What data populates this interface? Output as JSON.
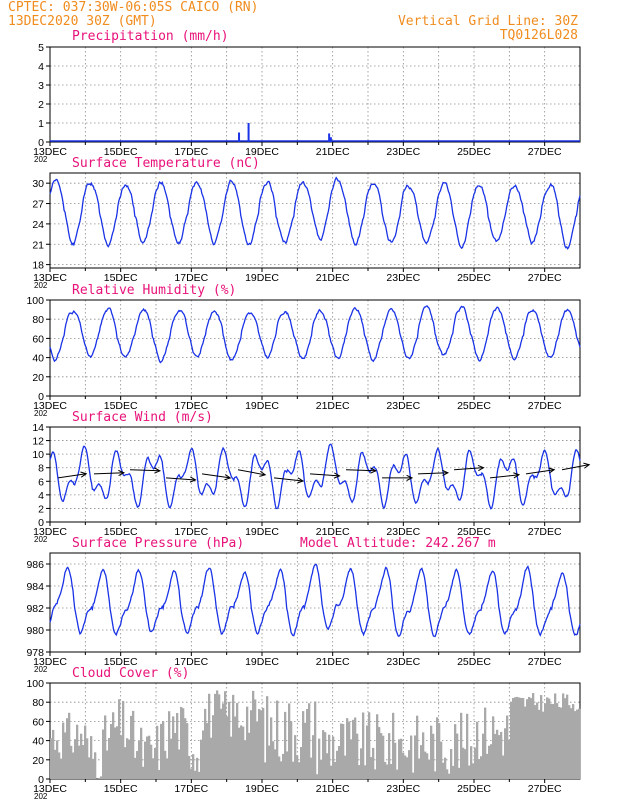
{
  "header": {
    "line1": "CPTEC:   037:30W-06:05S   CAICO (RN)",
    "line2": "13DEC2020 30Z (GMT)",
    "right1": "Vertical Grid Line: 30Z",
    "right2": "TQ0126L028"
  },
  "colors": {
    "header": "#f08c1e",
    "title": "#e8127a",
    "series": "#1a33e6",
    "cloud": "#a9a9a9",
    "grid": "#8c8c8c"
  },
  "x_axis": {
    "labels": [
      "13DEC",
      "15DEC",
      "17DEC",
      "19DEC",
      "21DEC",
      "23DEC",
      "25DEC",
      "27DEC"
    ],
    "year_fragment": "202"
  },
  "chart_data": [
    {
      "type": "bar",
      "id": "precip",
      "title": "Precipitation (mm/h)",
      "ylim": [
        0,
        5
      ],
      "yticks": [
        "0",
        "1",
        "2",
        "3",
        "4",
        "5"
      ],
      "x_day_range": [
        0,
        15
      ],
      "points": [
        {
          "day": 5.35,
          "value": 0.5
        },
        {
          "day": 5.62,
          "value": 1.0
        },
        {
          "day": 7.9,
          "value": 0.45
        },
        {
          "day": 7.95,
          "value": 0.25
        }
      ]
    },
    {
      "type": "line",
      "id": "temp",
      "title": "Surface Temperature (nC)",
      "ylim": [
        17.5,
        31.5
      ],
      "yticks": [
        "18",
        "21",
        "24",
        "27",
        "30"
      ],
      "x_day_range": [
        0,
        15
      ],
      "mean": 25.5,
      "amplitude": 4.4,
      "phase": 0.9
    },
    {
      "type": "line",
      "id": "rh",
      "title": "Relative Humidity (%)",
      "ylim": [
        0,
        100
      ],
      "yticks": [
        "0",
        "20",
        "40",
        "60",
        "80",
        "100"
      ],
      "x_day_range": [
        0,
        15
      ],
      "mean": 64,
      "amplitude": 25,
      "phase": 0.4
    },
    {
      "type": "line",
      "id": "wind",
      "title": "Surface Wind (m/s)",
      "ylim": [
        0,
        14
      ],
      "yticks": [
        "0",
        "2",
        "4",
        "6",
        "8",
        "10",
        "12",
        "14"
      ],
      "x_day_range": [
        0,
        15
      ],
      "mean": 6.5,
      "amplitude": 2.8,
      "phase": 0.7,
      "arrows_deg": [
        200,
        185,
        175,
        170,
        160,
        155,
        165,
        170,
        175,
        180,
        185,
        190,
        195,
        200,
        205
      ]
    },
    {
      "type": "line",
      "id": "pres",
      "title": "Surface Pressure (hPa)",
      "extra_label": "Model Altitude: 242.267  m",
      "ylim": [
        978,
        987
      ],
      "yticks": [
        "978",
        "980",
        "982",
        "984",
        "986"
      ],
      "x_day_range": [
        0,
        15
      ],
      "mean": 982.3,
      "amplitude": 2.5,
      "phase": 0.2
    },
    {
      "type": "bar",
      "id": "cloud",
      "title": "Cloud Cover (%)",
      "ylim": [
        0,
        100
      ],
      "yticks": [
        "0",
        "20",
        "40",
        "60",
        "80",
        "100"
      ],
      "x_day_range": [
        0,
        15
      ]
    }
  ]
}
